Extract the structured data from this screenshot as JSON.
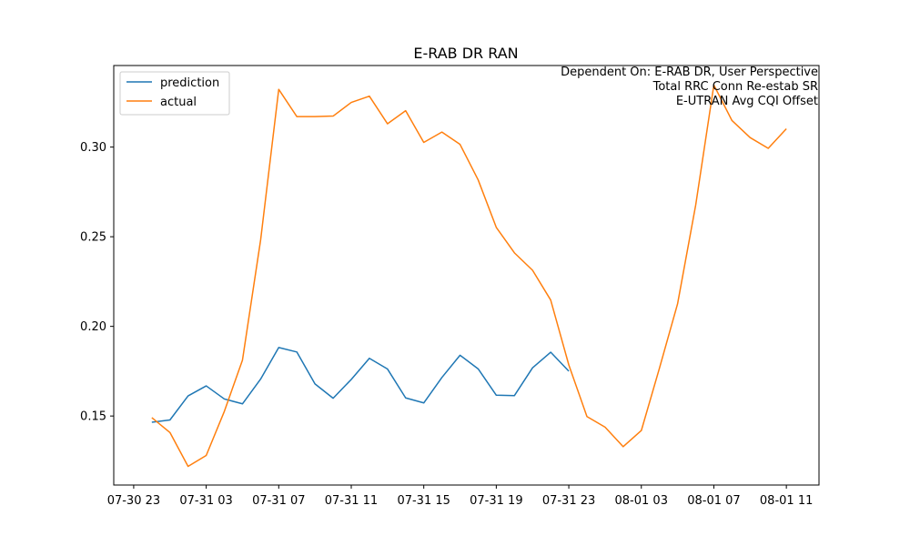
{
  "chart_data": {
    "type": "line",
    "title": "E-RAB DR RAN",
    "xlabel": "",
    "ylabel": "",
    "annotations": [
      "Dependent On: E-RAB DR, User Perspective",
      "Total RRC Conn Re-estab SR",
      "E-UTRAN Avg CQI Offset"
    ],
    "x_start_hour": 0,
    "xtick_hours": [
      -1,
      3,
      7,
      11,
      15,
      19,
      23,
      27,
      31,
      35
    ],
    "xtick_labels": [
      "07-30 23",
      "07-31 03",
      "07-31 07",
      "07-31 11",
      "07-31 15",
      "07-31 19",
      "07-31 23",
      "08-01 03",
      "08-01 07",
      "08-01 11"
    ],
    "yticks": [
      0.15,
      0.2,
      0.25,
      0.3
    ],
    "ytick_labels": [
      "0.15",
      "0.20",
      "0.25",
      "0.30"
    ],
    "xlim": [
      -2.1,
      36.8
    ],
    "ylim": [
      0.1115,
      0.3455
    ],
    "grid": false,
    "legend_position": "upper left",
    "series": [
      {
        "name": "prediction",
        "color": "#1f77b4",
        "values": [
          0.1465,
          0.1478,
          0.1612,
          0.1668,
          0.1595,
          0.1568,
          0.1706,
          0.1882,
          0.1857,
          0.1679,
          0.1599,
          0.1704,
          0.1822,
          0.1762,
          0.1601,
          0.1573,
          0.1715,
          0.1839,
          0.1763,
          0.1616,
          0.1614,
          0.1769,
          0.1856,
          0.175
        ]
      },
      {
        "name": "actual",
        "color": "#ff7f0e",
        "values": [
          0.1491,
          0.1408,
          0.1219,
          0.128,
          0.1526,
          0.1812,
          0.2481,
          0.3322,
          0.317,
          0.317,
          0.3173,
          0.3249,
          0.3284,
          0.313,
          0.3203,
          0.3026,
          0.3084,
          0.3015,
          0.2817,
          0.2552,
          0.241,
          0.2313,
          0.2147,
          0.1785,
          0.1497,
          0.1438,
          0.1329,
          0.1419,
          0.1767,
          0.2126,
          0.2677,
          0.3346,
          0.3148,
          0.3053,
          0.2993,
          0.3102
        ]
      }
    ]
  }
}
